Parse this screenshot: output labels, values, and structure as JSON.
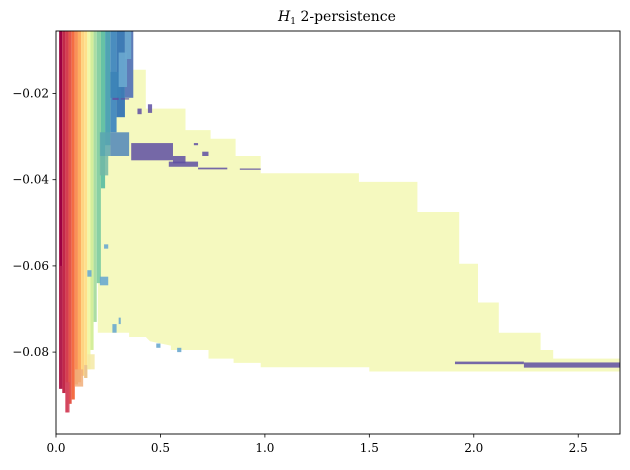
{
  "chart_data": {
    "type": "heatmap",
    "title_math": "H",
    "title_sub": "1",
    "title_rest": "2-persistence",
    "xlim": [
      0.0,
      2.7
    ],
    "ylim": [
      -0.099,
      -0.0055
    ],
    "x_ticks": [
      0.0,
      0.5,
      1.0,
      1.5,
      2.0,
      2.5
    ],
    "x_tick_labels": [
      "0.0",
      "0.5",
      "1.0",
      "1.5",
      "2.0",
      "2.5"
    ],
    "y_ticks": [
      -0.02,
      -0.04,
      -0.06,
      -0.08
    ],
    "y_tick_labels": [
      "−0.02",
      "−0.04",
      "−0.06",
      "−0.08"
    ],
    "colormap": "Spectral",
    "colors": {
      "yellow_region": "#f5f9bf",
      "dark_band": "#5e4fa2",
      "blue_band": "#3e7bb5",
      "light_blue": "#6aa9cf",
      "teal": "#66c2a5",
      "green": "#abdda4",
      "cream": "#fdfbbd",
      "orange": "#fdae61",
      "red_orange": "#f46d43",
      "red": "#d53e4f",
      "dark_red": "#9e0142"
    },
    "yellow_region_outline": [
      [
        0.23,
        -0.0055
      ],
      [
        0.23,
        -0.0145
      ],
      [
        0.43,
        -0.0145
      ],
      [
        0.43,
        -0.0235
      ],
      [
        0.62,
        -0.0235
      ],
      [
        0.62,
        -0.0285
      ],
      [
        0.74,
        -0.0285
      ],
      [
        0.74,
        -0.0305
      ],
      [
        0.86,
        -0.0305
      ],
      [
        0.86,
        -0.0345
      ],
      [
        0.98,
        -0.0345
      ],
      [
        0.98,
        -0.0385
      ],
      [
        1.45,
        -0.0385
      ],
      [
        1.45,
        -0.0405
      ],
      [
        1.73,
        -0.0405
      ],
      [
        1.73,
        -0.0475
      ],
      [
        1.93,
        -0.0475
      ],
      [
        1.93,
        -0.0595
      ],
      [
        2.02,
        -0.0595
      ],
      [
        2.02,
        -0.0685
      ],
      [
        2.12,
        -0.0685
      ],
      [
        2.12,
        -0.0755
      ],
      [
        2.32,
        -0.0755
      ],
      [
        2.32,
        -0.0795
      ],
      [
        2.38,
        -0.0795
      ],
      [
        2.38,
        -0.0815
      ],
      [
        2.7,
        -0.0815
      ],
      [
        2.7,
        -0.0845
      ],
      [
        1.5,
        -0.0845
      ],
      [
        1.5,
        -0.0835
      ],
      [
        0.98,
        -0.0835
      ],
      [
        0.98,
        -0.0825
      ],
      [
        0.85,
        -0.0825
      ],
      [
        0.85,
        -0.0815
      ],
      [
        0.73,
        -0.0815
      ],
      [
        0.73,
        -0.0795
      ],
      [
        0.55,
        -0.0795
      ],
      [
        0.55,
        -0.0785
      ],
      [
        0.45,
        -0.0775
      ],
      [
        0.43,
        -0.0765
      ],
      [
        0.35,
        -0.0765
      ],
      [
        0.35,
        -0.0755
      ],
      [
        0.2,
        -0.0755
      ],
      [
        0.2,
        -0.0055
      ]
    ],
    "dark_bars": [
      [
        1.91,
        2.24,
        -0.0828,
        -0.0822
      ],
      [
        2.24,
        2.7,
        -0.0836,
        -0.0824
      ],
      [
        0.36,
        0.56,
        -0.0315,
        -0.0355
      ],
      [
        0.56,
        0.62,
        -0.0345,
        -0.0362
      ],
      [
        0.54,
        0.68,
        -0.0358,
        -0.037
      ],
      [
        0.68,
        0.82,
        -0.0372,
        -0.0376
      ],
      [
        0.88,
        0.98,
        -0.0374,
        -0.0377
      ],
      [
        0.44,
        0.46,
        -0.0225,
        -0.0245
      ],
      [
        0.39,
        0.41,
        -0.0235,
        -0.0248
      ],
      [
        0.7,
        0.73,
        -0.0335,
        -0.0345
      ],
      [
        0.66,
        0.68,
        -0.0315,
        -0.032
      ],
      [
        0.27,
        0.3,
        -0.021,
        -0.0215
      ],
      [
        0.31,
        0.35,
        -0.0211,
        -0.0214
      ]
    ],
    "small_blue_marks": [
      [
        0.3,
        0.34,
        -0.0105,
        -0.0185
      ],
      [
        0.33,
        0.36,
        -0.0055,
        -0.012
      ],
      [
        0.21,
        0.25,
        -0.0625,
        -0.0645
      ],
      [
        0.3,
        0.31,
        -0.072,
        -0.0735
      ],
      [
        0.15,
        0.17,
        -0.061,
        -0.0625
      ],
      [
        0.27,
        0.29,
        -0.0735,
        -0.0755
      ],
      [
        0.48,
        0.5,
        -0.078,
        -0.079
      ],
      [
        0.58,
        0.6,
        -0.079,
        -0.08
      ],
      [
        0.23,
        0.25,
        -0.055,
        -0.056
      ]
    ],
    "spectral_columns": [
      {
        "x0": 0.015,
        "x1": 0.03,
        "bottom": -0.0885,
        "color": "#9e0142"
      },
      {
        "x0": 0.03,
        "x1": 0.045,
        "bottom": -0.0895,
        "color": "#c2294a"
      },
      {
        "x0": 0.045,
        "x1": 0.06,
        "bottom": -0.094,
        "color": "#d53e4f"
      },
      {
        "x0": 0.06,
        "x1": 0.075,
        "bottom": -0.092,
        "color": "#e55749"
      },
      {
        "x0": 0.075,
        "x1": 0.09,
        "bottom": -0.091,
        "color": "#f46d43"
      },
      {
        "x0": 0.09,
        "x1": 0.105,
        "bottom": -0.0875,
        "color": "#f99156"
      },
      {
        "x0": 0.105,
        "x1": 0.12,
        "bottom": -0.087,
        "color": "#fdae61"
      },
      {
        "x0": 0.12,
        "x1": 0.135,
        "bottom": -0.0855,
        "color": "#fed481"
      },
      {
        "x0": 0.135,
        "x1": 0.15,
        "bottom": -0.086,
        "color": "#fee08b"
      },
      {
        "x0": 0.15,
        "x1": 0.165,
        "bottom": -0.084,
        "color": "#f1f8a8"
      },
      {
        "x0": 0.165,
        "x1": 0.18,
        "bottom": -0.0795,
        "color": "#d4ee9b"
      },
      {
        "x0": 0.18,
        "x1": 0.195,
        "bottom": -0.073,
        "color": "#abdda4"
      },
      {
        "x0": 0.195,
        "x1": 0.215,
        "bottom": -0.064,
        "color": "#89d0a4"
      },
      {
        "x0": 0.215,
        "x1": 0.235,
        "bottom": -0.042,
        "color": "#66c2a5"
      },
      {
        "x0": 0.235,
        "x1": 0.26,
        "bottom": -0.032,
        "color": "#4fa4b3"
      },
      {
        "x0": 0.26,
        "x1": 0.29,
        "bottom": -0.029,
        "color": "#4a8dbf"
      },
      {
        "x0": 0.29,
        "x1": 0.33,
        "bottom": -0.0255,
        "color": "#3e7bb5"
      },
      {
        "x0": 0.33,
        "x1": 0.37,
        "bottom": -0.021,
        "color": "#5e7cb8"
      }
    ],
    "overlay_columns": [
      {
        "x0": 0.015,
        "x1": 0.03,
        "top": -0.06,
        "bottom": -0.0885,
        "color": "#b52450"
      },
      {
        "x0": 0.045,
        "x1": 0.065,
        "top": -0.087,
        "bottom": -0.094,
        "color": "#d3475f"
      },
      {
        "x0": 0.09,
        "x1": 0.13,
        "top": -0.084,
        "bottom": -0.088,
        "color": "#f1ae7a"
      },
      {
        "x0": 0.135,
        "x1": 0.15,
        "top": -0.083,
        "bottom": -0.086,
        "color": "#e7c08f"
      },
      {
        "x0": 0.15,
        "x1": 0.185,
        "top": -0.0805,
        "bottom": -0.084,
        "color": "#f5e9a4"
      },
      {
        "x0": 0.21,
        "x1": 0.26,
        "top": -0.029,
        "bottom": -0.0345,
        "color": "#5aa6b0"
      },
      {
        "x0": 0.26,
        "x1": 0.35,
        "top": -0.029,
        "bottom": -0.0345,
        "color": "#4f86b8"
      },
      {
        "x0": 0.21,
        "x1": 0.25,
        "top": -0.0345,
        "bottom": -0.039,
        "color": "#73b9a6"
      },
      {
        "x0": 0.26,
        "x1": 0.31,
        "top": -0.015,
        "bottom": -0.021,
        "color": "#3b83b6"
      }
    ]
  }
}
